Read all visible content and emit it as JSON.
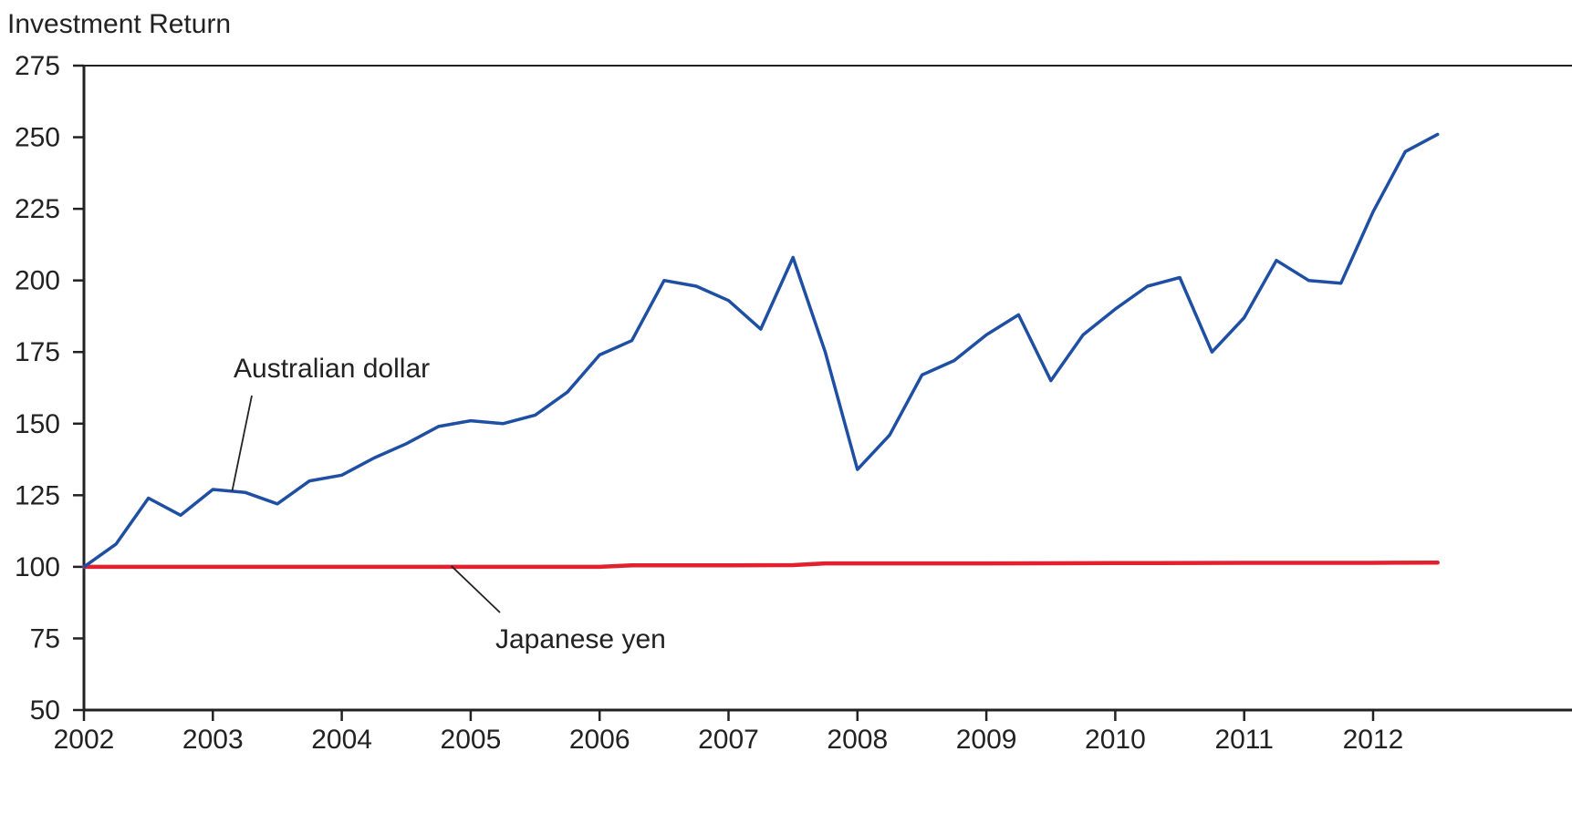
{
  "chart_data": {
    "type": "line",
    "title": "",
    "ylabel": "Investment Return",
    "xlabel": "",
    "xlim": [
      2002,
      2012.5
    ],
    "ylim": [
      50,
      275
    ],
    "x_ticks": [
      "2002",
      "2003",
      "2004",
      "2005",
      "2006",
      "2007",
      "2008",
      "2009",
      "2010",
      "2011",
      "2012"
    ],
    "y_ticks": [
      "50",
      "75",
      "100",
      "125",
      "150",
      "175",
      "200",
      "225",
      "250",
      "275"
    ],
    "grid": false,
    "legend": "none",
    "series": [
      {
        "name": "Australian dollar",
        "color": "#1f4fa3",
        "x": [
          2002.0,
          2002.25,
          2002.5,
          2002.75,
          2003.0,
          2003.25,
          2003.5,
          2003.75,
          2004.0,
          2004.25,
          2004.5,
          2004.75,
          2005.0,
          2005.25,
          2005.5,
          2005.75,
          2006.0,
          2006.25,
          2006.5,
          2006.75,
          2007.0,
          2007.25,
          2007.5,
          2007.75,
          2008.0,
          2008.25,
          2008.5,
          2008.75,
          2009.0,
          2009.25,
          2009.5,
          2009.75,
          2010.0,
          2010.25,
          2010.5,
          2010.75,
          2011.0,
          2011.25,
          2011.5,
          2011.75,
          2012.0,
          2012.25,
          2012.5
        ],
        "y": [
          100,
          108,
          124,
          118,
          127,
          126,
          122,
          130,
          132,
          138,
          143,
          149,
          151,
          150,
          153,
          161,
          174,
          179,
          200,
          198,
          193,
          183,
          208,
          175,
          134,
          146,
          167,
          172,
          181,
          188,
          165,
          181,
          190,
          198,
          201,
          175,
          187,
          207,
          200,
          199,
          224,
          245,
          251
        ]
      },
      {
        "name": "Japanese yen",
        "color": "#e3202e",
        "x": [
          2002.0,
          2003.0,
          2004.0,
          2005.0,
          2006.0,
          2006.25,
          2007.0,
          2007.5,
          2007.75,
          2008.0,
          2009.0,
          2010.0,
          2011.0,
          2012.0,
          2012.5
        ],
        "y": [
          100,
          100,
          100,
          100,
          100,
          100.5,
          100.5,
          100.6,
          101.2,
          101.2,
          101.2,
          101.3,
          101.4,
          101.4,
          101.5
        ]
      }
    ],
    "annotations": [
      {
        "text": "Australian dollar",
        "series": 0
      },
      {
        "text": "Japanese yen",
        "series": 1
      }
    ]
  }
}
